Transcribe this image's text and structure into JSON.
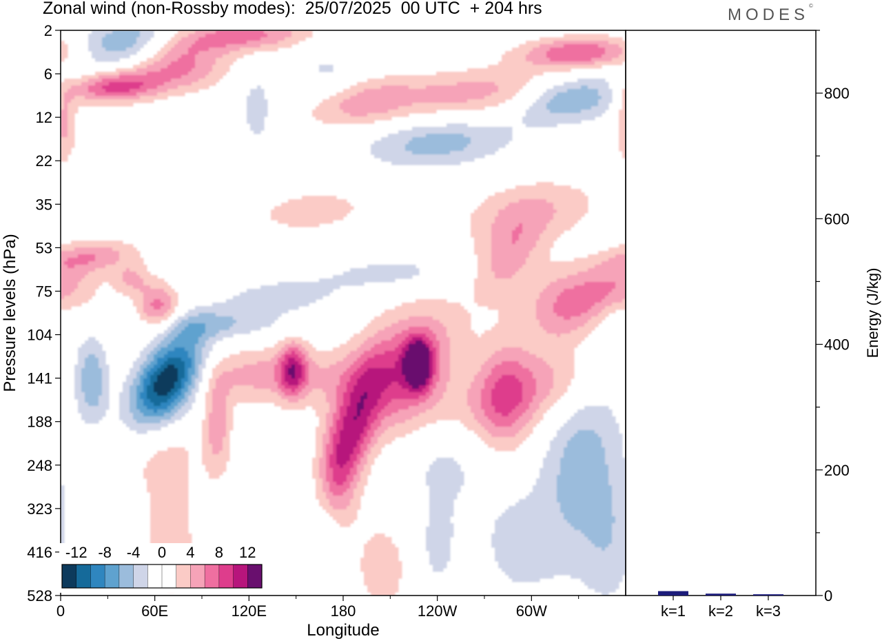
{
  "header": {
    "title": "Zonal wind (non-Rossby modes):  25/07/2025  00 UTC  + 204 hrs",
    "brand": "MODES",
    "brand_mark": "©"
  },
  "chart_data": [
    {
      "type": "heatmap",
      "title": "Zonal wind (non-Rossby modes)",
      "xlabel": "Longitude",
      "ylabel": "Pressure levels (hPa)",
      "x_tick_labels": [
        "0",
        "60E",
        "120E",
        "180",
        "120W",
        "60W"
      ],
      "x_tick_degrees": [
        0,
        60,
        120,
        180,
        240,
        300
      ],
      "xlim": [
        0,
        360
      ],
      "y_tick_labels": [
        "2",
        "6",
        "12",
        "22",
        "35",
        "53",
        "75",
        "104",
        "141",
        "188",
        "248",
        "323",
        "416",
        "528"
      ],
      "y_scale": "model levels (top to bottom)",
      "colorbar": {
        "tick_labels": [
          "-12",
          "-8",
          "-4",
          "0",
          "4",
          "8",
          "12"
        ],
        "levels": [
          -14,
          -12,
          -10,
          -8,
          -6,
          -4,
          -2,
          0,
          2,
          4,
          6,
          8,
          10,
          12,
          14
        ],
        "colors": [
          "#0d3a5c",
          "#156a9a",
          "#2f86bf",
          "#5fa2cf",
          "#9bbcdc",
          "#cfd5e8",
          "#ffffff",
          "#ffffff",
          "#fbcbc6",
          "#f6a3b8",
          "#ef6fa0",
          "#de3d8c",
          "#b7157c",
          "#690f6e"
        ]
      },
      "features": [
        {
          "name": "strong easterly core",
          "sign": "negative",
          "value": -14,
          "lon": [
            35,
            95
          ],
          "level": "104-188"
        },
        {
          "name": "westerly band",
          "sign": "positive",
          "value": 10,
          "lon": [
            180,
            235
          ],
          "level": "104-248"
        },
        {
          "name": "upper westerlies",
          "sign": "positive",
          "value": 10,
          "lon": [
            20,
            85
          ],
          "level": "2-12"
        }
      ]
    },
    {
      "type": "bar",
      "ylabel": "Energy (J/kg)",
      "categories": [
        "k=1",
        "k=2",
        "k=3"
      ],
      "values": [
        7,
        3,
        2
      ],
      "ylim": [
        0,
        900
      ],
      "y_ticks": [
        0,
        200,
        400,
        600,
        800
      ],
      "colors": [
        "#1c1c7a",
        "#1c1c7a",
        "#1c1c7a"
      ]
    }
  ]
}
